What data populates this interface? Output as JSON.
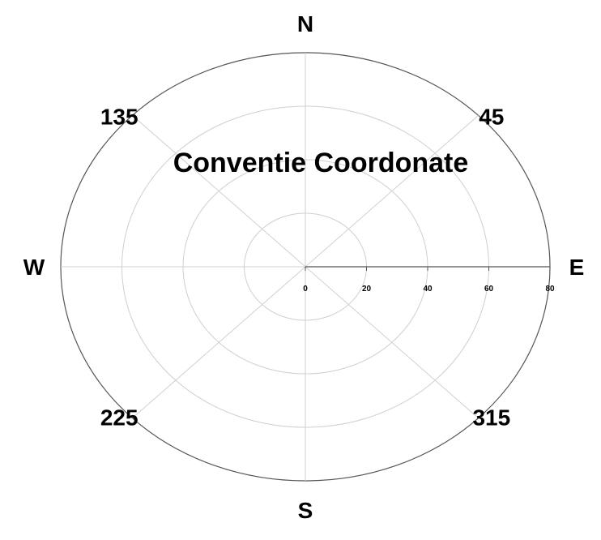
{
  "chart_data": {
    "type": "polar",
    "title": "Conventie Coordonate",
    "radial_ticks": [
      0,
      20,
      40,
      60,
      80
    ],
    "rlim": [
      0,
      80
    ],
    "grid": true,
    "directions": [
      {
        "label": "E",
        "angle": 0
      },
      {
        "label": "45",
        "angle": 45
      },
      {
        "label": "N",
        "angle": 90
      },
      {
        "label": "135",
        "angle": 135
      },
      {
        "label": "W",
        "angle": 180
      },
      {
        "label": "225",
        "angle": 225
      },
      {
        "label": "S",
        "angle": 270
      },
      {
        "label": "315",
        "angle": 315
      }
    ]
  }
}
